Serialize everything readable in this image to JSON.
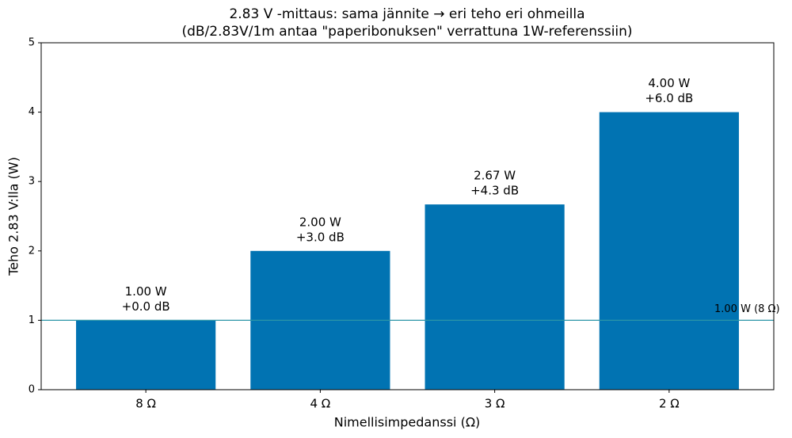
{
  "chart_data": {
    "type": "bar",
    "title": "2.83 V -mittaus: sama jännite → eri teho eri ohmeilla",
    "subtitle": "(dB/2.83V/1m antaa \"paperibonuksen\" verrattuna 1W-referenssiin)",
    "x_label": "Nimellisimpedanssi (Ω)",
    "y_label": "Teho 2.83 V:lla (W)",
    "categories": [
      "8 Ω",
      "4 Ω",
      "3 Ω",
      "2 Ω"
    ],
    "values": [
      1.0,
      2.0,
      2.67,
      4.0
    ],
    "value_labels": [
      "1.00 W",
      "2.00 W",
      "2.67 W",
      "4.00 W"
    ],
    "db_labels": [
      "+0.0 dB",
      "+3.0 dB",
      "+4.3 dB",
      "+6.0 dB"
    ],
    "color": "#0173b2",
    "ylim": [
      0,
      5
    ],
    "yticks": [
      0,
      1,
      2,
      3,
      4,
      5
    ],
    "reference_line": {
      "value": 1,
      "label": "1.00 W (8 Ω)",
      "color": "#2a95a8"
    }
  }
}
